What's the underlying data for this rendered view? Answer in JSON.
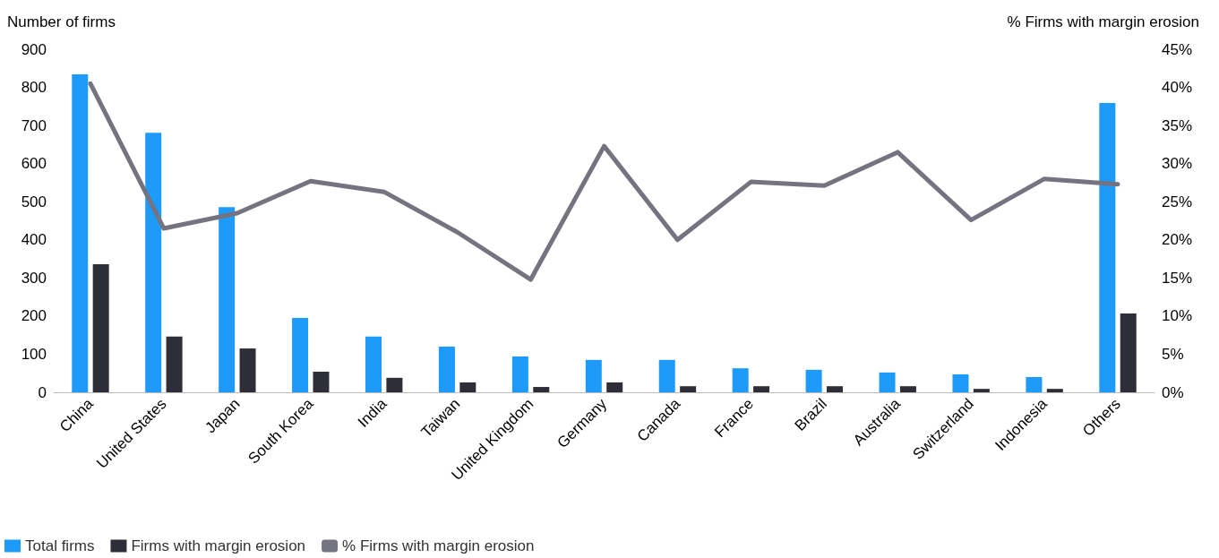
{
  "chart_data": {
    "type": "bar",
    "ylabel": "Number of firms",
    "y2label": "% Firms with margin erosion",
    "categories": [
      "China",
      "United States",
      "Japan",
      "South Korea",
      "India",
      "Taiwan",
      "United Kingdom",
      "Germany",
      "Canada",
      "France",
      "Brazil",
      "Australia",
      "Switzerland",
      "Indonesia",
      "Others"
    ],
    "series": [
      {
        "name": "Total firms",
        "color": "#1e9bfa",
        "values": [
          834,
          681,
          486,
          195,
          146,
          120,
          94,
          85,
          85,
          63,
          59,
          52,
          47,
          40,
          759
        ]
      },
      {
        "name": "Firms with margin erosion",
        "color": "#2e2e38",
        "values": [
          336,
          146,
          115,
          54,
          38,
          26,
          14,
          26,
          16,
          16,
          16,
          16,
          9,
          9,
          207
        ]
      },
      {
        "name": "% Firms with margin erosion",
        "type": "line",
        "axis": "y2",
        "color": "#747480",
        "values": [
          40.5,
          21.5,
          23.5,
          27.7,
          26.3,
          21.0,
          14.8,
          32.3,
          20.0,
          27.6,
          27.1,
          31.5,
          22.6,
          28.0,
          27.3
        ]
      }
    ],
    "ylim": [
      0,
      900
    ],
    "yticks": [
      0,
      100,
      200,
      300,
      400,
      500,
      600,
      700,
      800,
      900
    ],
    "y2lim": [
      0,
      45
    ],
    "y2ticks": [
      {
        "value": 0,
        "label": "0%"
      },
      {
        "value": 5,
        "label": "5%"
      },
      {
        "value": 10,
        "label": "10%"
      },
      {
        "value": 15,
        "label": "15%"
      },
      {
        "value": 20,
        "label": "20%"
      },
      {
        "value": 25,
        "label": "25%"
      },
      {
        "value": 30,
        "label": "30%"
      },
      {
        "value": 35,
        "label": "35%"
      },
      {
        "value": 40,
        "label": "40%"
      },
      {
        "value": 45,
        "label": "45%"
      }
    ],
    "grid": false,
    "legend": "bottom left",
    "marker": "none",
    "line_style": "solid"
  }
}
